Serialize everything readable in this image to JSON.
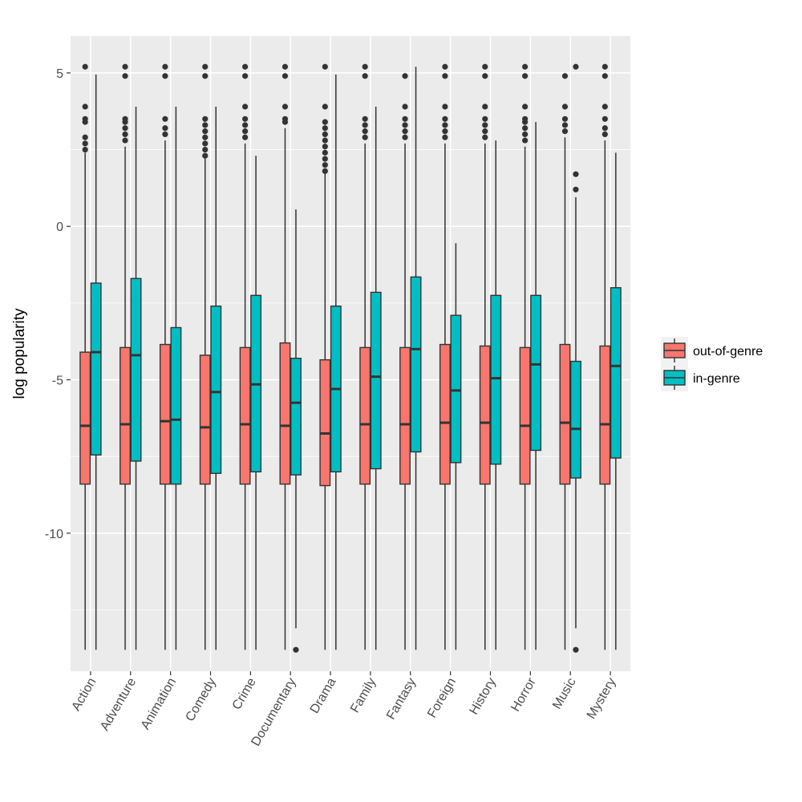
{
  "chart_data": {
    "type": "boxplot",
    "title": "",
    "xlabel": "",
    "ylabel": "log popularity",
    "ylim": [
      -14.5,
      6.2
    ],
    "yticks": [
      5,
      0,
      -5,
      -10
    ],
    "grid": true,
    "legend_position": "right",
    "colors": {
      "out-of-genre": "#f8766d",
      "in-genre": "#00bfc4",
      "panel": "#ebebeb",
      "gridline": "#ffffff",
      "line": "#333333"
    },
    "categories": [
      "Action",
      "Adventure",
      "Animation",
      "Comedy",
      "Crime",
      "Documentary",
      "Drama",
      "Family",
      "Fantasy",
      "Foreign",
      "History",
      "Horror",
      "Music",
      "Mystery"
    ],
    "series": [
      {
        "name": "out-of-genre",
        "boxes": [
          {
            "whisker_low": -13.8,
            "q1": -8.4,
            "median": -6.5,
            "q3": -4.1,
            "whisker_high": 2.4,
            "outliers": [
              2.5,
              2.7,
              2.9,
              3.4,
              3.5,
              3.9,
              5.2
            ]
          },
          {
            "whisker_low": -13.8,
            "q1": -8.4,
            "median": -6.45,
            "q3": -3.95,
            "whisker_high": 2.6,
            "outliers": [
              2.8,
              3.0,
              3.2,
              3.4,
              3.5,
              4.9,
              5.2
            ]
          },
          {
            "whisker_low": -13.8,
            "q1": -8.4,
            "median": -6.35,
            "q3": -3.85,
            "whisker_high": 2.8,
            "outliers": [
              3.0,
              3.2,
              3.5,
              4.9,
              5.2
            ]
          },
          {
            "whisker_low": -13.8,
            "q1": -8.4,
            "median": -6.55,
            "q3": -4.2,
            "whisker_high": 2.2,
            "outliers": [
              2.3,
              2.5,
              2.7,
              2.9,
              3.1,
              3.3,
              3.5,
              4.9,
              5.2
            ]
          },
          {
            "whisker_low": -13.8,
            "q1": -8.4,
            "median": -6.45,
            "q3": -3.95,
            "whisker_high": 2.7,
            "outliers": [
              2.9,
              3.1,
              3.3,
              3.5,
              3.9,
              4.9,
              5.2
            ]
          },
          {
            "whisker_low": -13.8,
            "q1": -8.4,
            "median": -6.5,
            "q3": -3.8,
            "whisker_high": 3.2,
            "outliers": [
              3.4,
              3.5,
              3.9,
              4.9,
              5.2
            ]
          },
          {
            "whisker_low": -13.8,
            "q1": -8.45,
            "median": -6.75,
            "q3": -4.35,
            "whisker_high": 1.8,
            "outliers": [
              1.8,
              2.0,
              2.2,
              2.4,
              2.6,
              2.8,
              3.0,
              3.2,
              3.4,
              3.9,
              5.2
            ]
          },
          {
            "whisker_low": -13.8,
            "q1": -8.4,
            "median": -6.45,
            "q3": -3.95,
            "whisker_high": 2.7,
            "outliers": [
              2.9,
              3.1,
              3.3,
              3.5,
              4.9,
              5.2
            ]
          },
          {
            "whisker_low": -13.8,
            "q1": -8.4,
            "median": -6.45,
            "q3": -3.95,
            "whisker_high": 2.7,
            "outliers": [
              2.9,
              3.1,
              3.3,
              3.5,
              3.9,
              4.9
            ]
          },
          {
            "whisker_low": -13.8,
            "q1": -8.4,
            "median": -6.4,
            "q3": -3.85,
            "whisker_high": 2.7,
            "outliers": [
              2.9,
              3.1,
              3.3,
              3.5,
              3.9,
              4.9,
              5.2
            ]
          },
          {
            "whisker_low": -13.8,
            "q1": -8.4,
            "median": -6.4,
            "q3": -3.9,
            "whisker_high": 2.7,
            "outliers": [
              2.9,
              3.1,
              3.3,
              3.5,
              3.9,
              4.9,
              5.2
            ]
          },
          {
            "whisker_low": -13.8,
            "q1": -8.4,
            "median": -6.5,
            "q3": -3.95,
            "whisker_high": 2.6,
            "outliers": [
              2.8,
              3.0,
              3.2,
              3.4,
              3.5,
              3.9,
              4.9,
              5.2
            ]
          },
          {
            "whisker_low": -13.8,
            "q1": -8.4,
            "median": -6.4,
            "q3": -3.85,
            "whisker_high": 2.9,
            "outliers": [
              3.1,
              3.3,
              3.5,
              3.9,
              4.9
            ]
          },
          {
            "whisker_low": -13.8,
            "q1": -8.4,
            "median": -6.45,
            "q3": -3.9,
            "whisker_high": 2.8,
            "outliers": [
              3.0,
              3.2,
              3.5,
              3.9,
              4.9,
              5.2
            ]
          }
        ]
      },
      {
        "name": "in-genre",
        "boxes": [
          {
            "whisker_low": -13.8,
            "q1": -7.45,
            "median": -4.1,
            "q3": -1.85,
            "whisker_high": 4.95,
            "outliers": []
          },
          {
            "whisker_low": -13.8,
            "q1": -7.65,
            "median": -4.2,
            "q3": -1.7,
            "whisker_high": 3.9,
            "outliers": []
          },
          {
            "whisker_low": -13.8,
            "q1": -8.4,
            "median": -6.3,
            "q3": -3.3,
            "whisker_high": 3.9,
            "outliers": []
          },
          {
            "whisker_low": -13.8,
            "q1": -8.05,
            "median": -5.4,
            "q3": -2.6,
            "whisker_high": 3.9,
            "outliers": []
          },
          {
            "whisker_low": -13.8,
            "q1": -8.0,
            "median": -5.15,
            "q3": -2.25,
            "whisker_high": 2.3,
            "outliers": []
          },
          {
            "whisker_low": -13.1,
            "q1": -8.1,
            "median": -5.75,
            "q3": -4.3,
            "whisker_high": 0.55,
            "outliers": [
              -13.8
            ]
          },
          {
            "whisker_low": -13.8,
            "q1": -8.0,
            "median": -5.3,
            "q3": -2.6,
            "whisker_high": 4.95,
            "outliers": []
          },
          {
            "whisker_low": -13.8,
            "q1": -7.9,
            "median": -4.9,
            "q3": -2.15,
            "whisker_high": 3.9,
            "outliers": []
          },
          {
            "whisker_low": -13.8,
            "q1": -7.35,
            "median": -4.0,
            "q3": -1.65,
            "whisker_high": 5.2,
            "outliers": []
          },
          {
            "whisker_low": -13.8,
            "q1": -7.7,
            "median": -5.35,
            "q3": -2.9,
            "whisker_high": -0.55,
            "outliers": []
          },
          {
            "whisker_low": -13.8,
            "q1": -7.75,
            "median": -4.95,
            "q3": -2.25,
            "whisker_high": 2.8,
            "outliers": []
          },
          {
            "whisker_low": -13.8,
            "q1": -7.3,
            "median": -4.5,
            "q3": -2.25,
            "whisker_high": 3.4,
            "outliers": []
          },
          {
            "whisker_low": -13.1,
            "q1": -8.2,
            "median": -6.6,
            "q3": -4.4,
            "whisker_high": 0.95,
            "outliers": [
              1.2,
              1.7,
              5.2,
              -13.8
            ]
          },
          {
            "whisker_low": -13.8,
            "q1": -7.55,
            "median": -4.55,
            "q3": -2.0,
            "whisker_high": 2.4,
            "outliers": []
          }
        ]
      }
    ]
  }
}
